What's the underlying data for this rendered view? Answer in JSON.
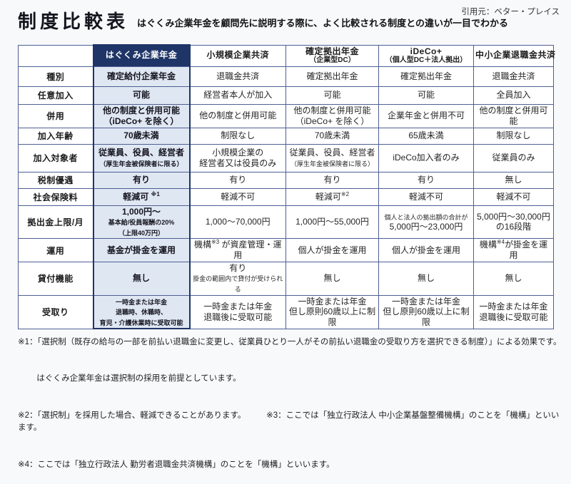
{
  "header": {
    "title": "制度比較表",
    "subtitle": "はぐくみ企業年金を顧問先に説明する際に、よく比較される制度との違いが一目でわかる",
    "source": "引用元：ベター・プレイス"
  },
  "table": {
    "columns": [
      {
        "title": "はぐくみ企業年金",
        "sub": "",
        "type": "primary"
      },
      {
        "title": "小規模企業共済",
        "sub": ""
      },
      {
        "title": "確定拠出年金",
        "sub": "（企業型DC）"
      },
      {
        "title": "iDeCo+",
        "sub": "（個人型DC＋法人拠出）"
      },
      {
        "title": "中小企業退職金共済",
        "sub": ""
      }
    ],
    "rows": [
      {
        "label": "種別",
        "cells": [
          "確定給付企業年金",
          "退職金共済",
          "確定拠出年金",
          "確定拠出年金",
          "退職金共済"
        ]
      },
      {
        "label": "任意加入",
        "cells": [
          "可能",
          "経営者本人が加入",
          "可能",
          "可能",
          "全員加入"
        ]
      },
      {
        "label": "併用",
        "cells": [
          [
            "他の制度と併用可能",
            "（iDeCo+ を除く）"
          ],
          "他の制度と併用可能",
          [
            "他の制度と併用可能",
            "（iDeCo+ を除く）"
          ],
          "企業年金と併用不可",
          "他の制度と併用可能"
        ]
      },
      {
        "label": "加入年齢",
        "cells": [
          "70歳未満",
          "制限なし",
          "70歳未満",
          "65歳未満",
          "制限なし"
        ]
      },
      {
        "label": "加入対象者",
        "cells": [
          [
            "従業員、役員、経営者",
            {
              "t": "（厚生年金被保険者に限る）",
              "small": true
            }
          ],
          [
            "小規模企業の",
            "経営者又は役員のみ"
          ],
          [
            "従業員、役員、経営者",
            {
              "t": "（厚生年金被保険者に限る）",
              "small": true
            }
          ],
          "iDeCo加入者のみ",
          "従業員のみ"
        ]
      },
      {
        "label": "税制優遇",
        "cells": [
          "有り",
          "有り",
          "有り",
          "有り",
          "無し"
        ]
      },
      {
        "label": "社会保険料",
        "cells": [
          [
            [
              {
                "t": "軽減可 "
              },
              {
                "t": "※1",
                "sup": true
              }
            ]
          ],
          "軽減不可",
          [
            [
              {
                "t": "軽減可"
              },
              {
                "t": "※2",
                "sup": true
              }
            ]
          ],
          "軽減不可",
          "軽減不可"
        ]
      },
      {
        "label": "拠出金上限/月",
        "cells": [
          [
            "1,000円～",
            {
              "t": "基本給/役員報酬の20%",
              "small": true
            },
            {
              "t": "（上限40万円）",
              "small": true
            }
          ],
          "1,000～70,000円",
          "1,000円～55,000円",
          [
            {
              "t": "個人と法人の拠出額の合計が",
              "small": true
            },
            "5,000円～23,000円"
          ],
          [
            "5,000円～30,000円",
            "の16段階"
          ]
        ]
      },
      {
        "label": "運用",
        "cells": [
          "基金が掛金を運用",
          [
            [
              {
                "t": "機構"
              },
              {
                "t": "※3",
                "sup": true
              },
              {
                "t": " が資産管理・運用"
              }
            ]
          ],
          "個人が掛金を運用",
          "個人が掛金を運用",
          [
            [
              {
                "t": "機構"
              },
              {
                "t": "※4",
                "sup": true
              },
              {
                "t": "が掛金を運用"
              }
            ]
          ]
        ]
      },
      {
        "label": "貸付機能",
        "cells": [
          "無し",
          [
            "有り",
            {
              "t": "掛金の範囲内で貸付が受けられる",
              "small": true
            }
          ],
          "無し",
          "無し",
          "無し"
        ]
      },
      {
        "label": "受取り",
        "cells": [
          [
            {
              "t": "一時金または年金",
              "small": true
            },
            {
              "t": "退職時、休職時、",
              "small": true
            },
            {
              "t": "育児・介護休業時に受取可能",
              "small": true
            }
          ],
          [
            "一時金または年金",
            "退職後に受取可能"
          ],
          [
            "一時金または年金",
            "但し原則60歳以上に制限"
          ],
          [
            "一時金または年金",
            "但し原則60歳以上に制限"
          ],
          [
            "一時金または年金",
            "退職後に受取可能"
          ]
        ]
      }
    ]
  },
  "notes": [
    "※1：「選択制（既存の給与の一部を前払い退職金に変更し、従業員ひとり一人がその前払い退職金の受取り方を選択できる制度）」による効果です。",
    "　　 はぐくみ企業年金は選択制の採用を前提としています。",
    "※2：「選択制」を採用した場合、軽減できることがあります。　　　※3：ここでは「独立行政法人 中小企業基盤整備機構」のことを「機構」といいます。",
    "※4：ここでは「独立行政法人 勤労者退職金共済機構」のことを「機構」といいます。"
  ],
  "colors": {
    "primary_navy": "#1f3567",
    "primary_light": "#dfe7f3",
    "header_gray": "#d9dadc",
    "border": "#4e5f93",
    "page_bg": "#f8f9fb",
    "text": "#222222"
  }
}
